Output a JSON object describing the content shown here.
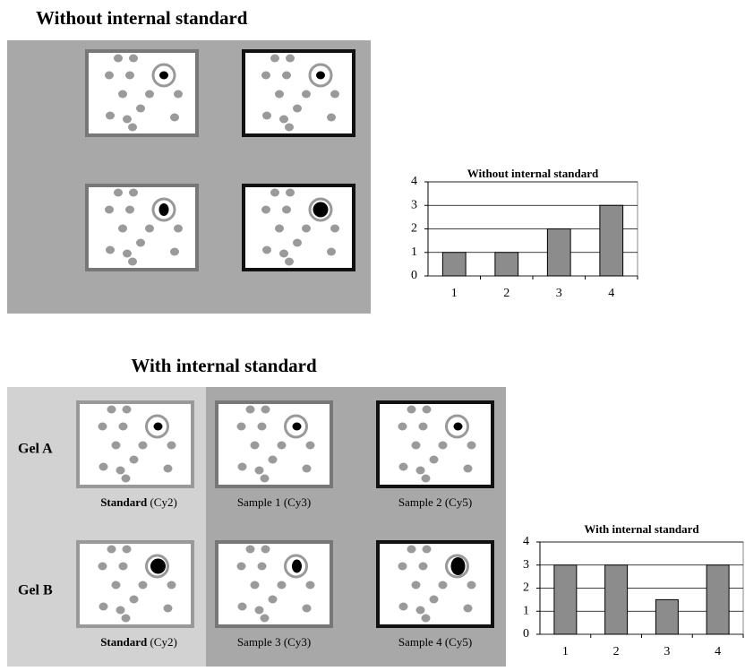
{
  "top": {
    "title": "Without internal standard"
  },
  "bottom": {
    "title": "With internal standard",
    "rows": [
      "Gel A",
      "Gel B"
    ],
    "standard": {
      "bold": "Standard",
      "rest": "(Cy2)"
    },
    "samples": [
      "Sample 1 (Cy3)",
      "Sample 2 (Cy5)",
      "Sample 3 (Cy3)",
      "Sample 4 (Cy5)"
    ]
  },
  "chart_data": [
    {
      "type": "bar",
      "title": "Without internal standard",
      "categories": [
        "1",
        "2",
        "3",
        "4"
      ],
      "values": [
        1,
        1,
        2,
        3
      ],
      "color": "#8c8c8c",
      "ylim": [
        0,
        4
      ],
      "yticks": [
        0,
        1,
        2,
        3,
        4
      ],
      "grid": true
    },
    {
      "type": "bar",
      "title": "With internal standard",
      "categories": [
        "1",
        "2",
        "3",
        "4"
      ],
      "values": [
        3,
        3,
        1.5,
        3
      ],
      "color": "#8c8c8c",
      "ylim": [
        0,
        4
      ],
      "yticks": [
        0,
        1,
        2,
        3,
        4
      ],
      "grid": true
    }
  ]
}
